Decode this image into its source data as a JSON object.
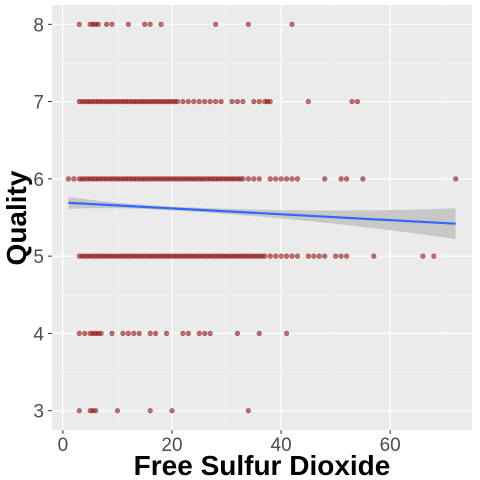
{
  "chart_data": {
    "type": "scatter",
    "title": "",
    "xlabel": "Free Sulfur Dioxide",
    "ylabel": "Quality",
    "xlim": [
      -2,
      75
    ],
    "ylim": [
      2.75,
      8.25
    ],
    "x_ticks": [
      0,
      20,
      40,
      60
    ],
    "y_ticks": [
      3,
      4,
      5,
      6,
      7,
      8
    ],
    "grid": true,
    "legend": "none",
    "colors": {
      "panel": "#ebebeb",
      "grid_major": "#ffffff",
      "grid_minor": "#f5f5f5",
      "points": "#8b0000",
      "trend_line": "#3366ff",
      "confidence_band": "#c2c2c2"
    },
    "series": [
      {
        "quality": 8,
        "x": [
          3,
          5,
          5.5,
          6,
          6.5,
          8,
          9,
          12,
          15,
          16,
          18,
          28,
          34,
          42
        ]
      },
      {
        "quality": 7,
        "x": [
          3,
          3.5,
          4,
          4.5,
          5,
          5.5,
          6,
          6.5,
          7,
          7.5,
          8,
          8.5,
          9,
          9.5,
          10,
          10.5,
          11,
          11.5,
          12,
          12.5,
          13,
          13.5,
          14,
          14.5,
          15,
          15.5,
          16,
          16.5,
          17,
          17.5,
          18,
          18.5,
          19,
          19.5,
          20,
          20.5,
          21,
          22,
          23,
          24,
          25,
          26,
          27,
          28,
          29,
          31,
          32,
          33,
          35,
          36,
          37,
          37.5,
          38,
          45,
          53,
          54
        ]
      },
      {
        "quality": 6,
        "x": [
          1,
          2,
          3,
          3.5,
          4,
          4.5,
          5,
          5.5,
          6,
          6.5,
          7,
          7.5,
          8,
          8.5,
          9,
          9.5,
          10,
          10.5,
          11,
          11.5,
          12,
          12.5,
          13,
          13.5,
          14,
          14.5,
          15,
          15.5,
          16,
          16.5,
          17,
          17.5,
          18,
          18.5,
          19,
          19.5,
          20,
          20.5,
          21,
          21.5,
          22,
          22.5,
          23,
          23.5,
          24,
          24.5,
          25,
          25.5,
          26,
          26.5,
          27,
          27.5,
          28,
          28.5,
          29,
          29.5,
          30,
          30.5,
          31,
          31.5,
          32,
          32.5,
          33,
          34,
          35,
          36,
          38,
          39,
          40,
          41,
          42,
          43,
          48,
          51,
          52,
          55,
          72
        ]
      },
      {
        "quality": 5,
        "x": [
          3,
          3.5,
          4,
          4.5,
          5,
          5.5,
          6,
          6.5,
          7,
          7.5,
          8,
          8.5,
          9,
          9.5,
          10,
          10.5,
          11,
          11.5,
          12,
          12.5,
          13,
          13.5,
          14,
          14.5,
          15,
          15.5,
          16,
          16.5,
          17,
          17.5,
          18,
          18.5,
          19,
          19.5,
          20,
          20.5,
          21,
          21.5,
          22,
          22.5,
          23,
          23.5,
          24,
          24.5,
          25,
          25.5,
          26,
          26.5,
          27,
          27.5,
          28,
          28.5,
          29,
          29.5,
          30,
          30.5,
          31,
          31.5,
          32,
          32.5,
          33,
          33.5,
          34,
          34.5,
          35,
          35.5,
          36,
          36.5,
          37,
          38,
          39,
          40,
          41,
          42,
          43,
          45,
          46,
          47,
          48,
          50,
          51,
          52,
          57,
          66,
          68
        ]
      },
      {
        "quality": 4,
        "x": [
          3,
          4,
          5,
          5.5,
          6,
          6.5,
          7,
          9,
          11,
          12,
          13,
          14,
          16,
          17,
          19,
          22,
          23,
          25,
          26,
          27,
          32,
          36,
          41
        ]
      },
      {
        "quality": 3,
        "x": [
          3,
          5,
          5.5,
          6,
          10,
          16,
          20,
          34
        ]
      }
    ],
    "trend": {
      "method": "linear",
      "x_start": 1,
      "x_end": 72,
      "y_start": 5.69,
      "y_end": 5.42,
      "se_start": 0.06,
      "se_end": 0.2
    }
  }
}
